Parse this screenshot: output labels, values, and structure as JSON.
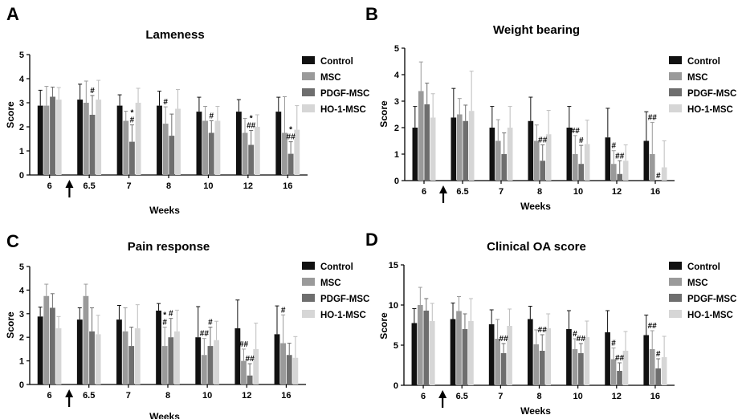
{
  "colors": {
    "Control": "#111111",
    "MSC": "#9a9a9a",
    "PDGF-MSC": "#6e6e6e",
    "HO-1-MSC": "#d6d6d6"
  },
  "treatment_marker": "arrow-up-icon",
  "chart_data": [
    {
      "panel": "A",
      "type": "bar",
      "title": "Lameness",
      "xlabel": "Weeks",
      "ylabel": "Score",
      "ylim": [
        0,
        5
      ],
      "yticks": [
        "0",
        "1",
        "2",
        "3",
        "4",
        "5"
      ],
      "categories": [
        "6",
        "6.5",
        "7",
        "8",
        "10",
        "12",
        "16"
      ],
      "legend": "right",
      "series": [
        {
          "name": "Control",
          "values": [
            2.88,
            3.13,
            2.88,
            2.88,
            2.63,
            2.63,
            2.63
          ],
          "errors": [
            0.64,
            0.64,
            0.45,
            0.6,
            0.6,
            0.5,
            0.6
          ]
        },
        {
          "name": "MSC",
          "values": [
            2.88,
            3.0,
            2.25,
            2.13,
            2.25,
            1.75,
            1.75
          ],
          "errors": [
            0.8,
            0.9,
            0.4,
            0.7,
            0.6,
            0.6,
            1.5
          ]
        },
        {
          "name": "PDGF-MSC",
          "values": [
            3.25,
            2.5,
            1.38,
            1.63,
            1.75,
            1.25,
            0.88
          ],
          "errors": [
            0.4,
            0.8,
            0.7,
            0.9,
            0.5,
            0.6,
            0.5
          ]
        },
        {
          "name": "HO-1-MSC",
          "values": [
            3.13,
            3.13,
            3.0,
            2.75,
            2.25,
            2.0,
            1.88
          ],
          "errors": [
            0.5,
            0.8,
            0.6,
            0.8,
            0.6,
            0.5,
            1.0
          ]
        }
      ],
      "annotations": [
        {
          "category": "6.5",
          "series": "PDGF-MSC",
          "text": [
            "#"
          ]
        },
        {
          "category": "7",
          "series": "PDGF-MSC",
          "text": [
            "*",
            "#"
          ]
        },
        {
          "category": "8",
          "series": "MSC",
          "text": [
            "#"
          ]
        },
        {
          "category": "10",
          "series": "PDGF-MSC",
          "text": [
            "#"
          ]
        },
        {
          "category": "12",
          "series": "PDGF-MSC",
          "text": [
            "*",
            "##"
          ]
        },
        {
          "category": "16",
          "series": "PDGF-MSC",
          "text": [
            "*",
            "##"
          ]
        }
      ]
    },
    {
      "panel": "B",
      "type": "bar",
      "title": "Weight bearing",
      "xlabel": "Weeks",
      "ylabel": "Score",
      "ylim": [
        0,
        5
      ],
      "yticks": [
        "0",
        "1",
        "2",
        "3",
        "4",
        "5"
      ],
      "categories": [
        "6",
        "6.5",
        "7",
        "8",
        "10",
        "12",
        "16"
      ],
      "legend": "right",
      "series": [
        {
          "name": "Control",
          "values": [
            2.0,
            2.38,
            2.0,
            2.25,
            2.0,
            1.63,
            1.5
          ],
          "errors": [
            0.8,
            1.1,
            0.8,
            0.9,
            0.8,
            1.1,
            1.1
          ]
        },
        {
          "name": "MSC",
          "values": [
            3.38,
            2.5,
            1.5,
            1.5,
            1.0,
            0.63,
            1.0
          ],
          "errors": [
            1.1,
            0.6,
            0.8,
            0.6,
            0.7,
            0.5,
            1.2
          ]
        },
        {
          "name": "PDGF-MSC",
          "values": [
            2.88,
            2.25,
            1.0,
            0.75,
            0.63,
            0.25,
            0.0
          ],
          "errors": [
            0.8,
            0.6,
            0.8,
            0.6,
            0.7,
            0.5,
            0.0
          ]
        },
        {
          "name": "HO-1-MSC",
          "values": [
            2.38,
            2.63,
            2.0,
            1.75,
            1.38,
            0.75,
            0.5
          ],
          "errors": [
            0.9,
            1.5,
            0.8,
            0.9,
            0.9,
            0.6,
            1.0
          ]
        }
      ],
      "annotations": [
        {
          "category": "8",
          "series": "PDGF-MSC",
          "text": [
            "##"
          ]
        },
        {
          "category": "10",
          "series": "MSC",
          "text": [
            "##"
          ]
        },
        {
          "category": "10",
          "series": "PDGF-MSC",
          "text": [
            "#"
          ]
        },
        {
          "category": "12",
          "series": "MSC",
          "text": [
            "#"
          ]
        },
        {
          "category": "12",
          "series": "PDGF-MSC",
          "text": [
            "##"
          ]
        },
        {
          "category": "16",
          "series": "MSC",
          "text": [
            "##"
          ]
        },
        {
          "category": "16",
          "series": "PDGF-MSC",
          "text": [
            "#"
          ]
        }
      ]
    },
    {
      "panel": "C",
      "type": "bar",
      "title": "Pain response",
      "xlabel": "Weeks",
      "ylabel": "Score",
      "ylim": [
        0,
        5
      ],
      "yticks": [
        "0",
        "1",
        "2",
        "3",
        "4",
        "5"
      ],
      "categories": [
        "6",
        "6.5",
        "7",
        "8",
        "10",
        "12",
        "16"
      ],
      "legend": "right",
      "series": [
        {
          "name": "Control",
          "values": [
            2.88,
            2.75,
            2.75,
            3.13,
            2.0,
            2.38,
            2.13
          ],
          "errors": [
            0.4,
            0.5,
            0.6,
            0.3,
            1.3,
            1.2,
            1.2
          ]
        },
        {
          "name": "MSC",
          "values": [
            3.75,
            3.75,
            2.25,
            1.63,
            1.25,
            1.0,
            1.75
          ],
          "errors": [
            0.5,
            0.5,
            1.0,
            0.8,
            0.7,
            0.5,
            1.2
          ]
        },
        {
          "name": "PDGF-MSC",
          "values": [
            3.25,
            2.25,
            1.63,
            2.0,
            1.63,
            0.38,
            1.25
          ],
          "errors": [
            0.6,
            1.0,
            0.8,
            0.8,
            0.8,
            0.5,
            0.5
          ]
        },
        {
          "name": "HO-1-MSC",
          "values": [
            2.38,
            2.13,
            2.38,
            2.25,
            1.88,
            1.5,
            1.13
          ],
          "errors": [
            0.5,
            0.8,
            1.0,
            0.9,
            0.8,
            1.1,
            0.9
          ]
        }
      ],
      "annotations": [
        {
          "category": "8",
          "series": "MSC",
          "text": [
            "*",
            "#"
          ]
        },
        {
          "category": "8",
          "series": "PDGF-MSC",
          "text": [
            "#"
          ]
        },
        {
          "category": "10",
          "series": "MSC",
          "text": [
            "##"
          ]
        },
        {
          "category": "10",
          "series": "PDGF-MSC",
          "text": [
            "#"
          ]
        },
        {
          "category": "12",
          "series": "MSC",
          "text": [
            "##"
          ]
        },
        {
          "category": "12",
          "series": "PDGF-MSC",
          "text": [
            "##"
          ]
        },
        {
          "category": "16",
          "series": "MSC",
          "text": [
            "#"
          ]
        }
      ]
    },
    {
      "panel": "D",
      "type": "bar",
      "title": "Clinical OA score",
      "xlabel": "Weeks",
      "ylabel": "Score",
      "ylim": [
        0,
        15
      ],
      "yticks": [
        "0",
        "5",
        "10",
        "15"
      ],
      "categories": [
        "6",
        "6.5",
        "7",
        "8",
        "10",
        "12",
        "16"
      ],
      "legend": "right",
      "series": [
        {
          "name": "Control",
          "values": [
            7.75,
            8.25,
            7.6,
            8.25,
            7.0,
            6.6,
            6.25
          ],
          "errors": [
            1.8,
            2.0,
            1.8,
            1.6,
            2.3,
            2.7,
            2.5
          ]
        },
        {
          "name": "MSC",
          "values": [
            10.0,
            9.25,
            5.8,
            5.1,
            4.5,
            3.25,
            4.5
          ],
          "errors": [
            2.2,
            1.8,
            2.4,
            1.8,
            1.3,
            1.4,
            2.3
          ]
        },
        {
          "name": "PDGF-MSC",
          "values": [
            9.3,
            7.0,
            4.0,
            4.3,
            4.0,
            1.8,
            2.1
          ],
          "errors": [
            1.5,
            1.9,
            1.2,
            2.0,
            1.2,
            1.0,
            1.2
          ]
        },
        {
          "name": "HO-1-MSC",
          "values": [
            8.0,
            8.0,
            7.4,
            7.1,
            6.0,
            4.3,
            3.5
          ],
          "errors": [
            2.2,
            2.8,
            2.1,
            1.8,
            2.0,
            2.4,
            2.6
          ]
        }
      ],
      "annotations": [
        {
          "category": "7",
          "series": "PDGF-MSC",
          "text": [
            "##"
          ]
        },
        {
          "category": "8",
          "series": "PDGF-MSC",
          "text": [
            "##"
          ]
        },
        {
          "category": "10",
          "series": "MSC",
          "text": [
            "#"
          ]
        },
        {
          "category": "10",
          "series": "PDGF-MSC",
          "text": [
            "##"
          ]
        },
        {
          "category": "12",
          "series": "MSC",
          "text": [
            "#"
          ]
        },
        {
          "category": "12",
          "series": "PDGF-MSC",
          "text": [
            "##"
          ]
        },
        {
          "category": "16",
          "series": "MSC",
          "text": [
            "##"
          ]
        },
        {
          "category": "16",
          "series": "PDGF-MSC",
          "text": [
            "#"
          ]
        }
      ]
    }
  ]
}
